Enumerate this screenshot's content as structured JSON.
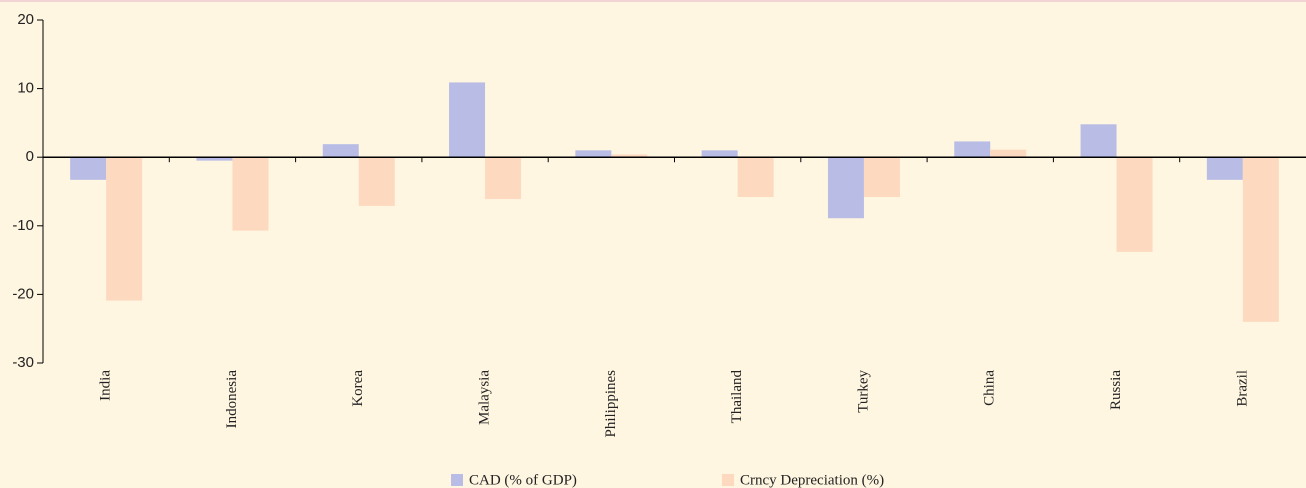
{
  "chart_data": {
    "type": "bar",
    "categories": [
      "India",
      "Indonesia",
      "Korea",
      "Malaysia",
      "Philippines",
      "Thailand",
      "Turkey",
      "China",
      "Russia",
      "Brazil"
    ],
    "series": [
      {
        "name": "CAD (% of GDP)",
        "color": "#b9bde6",
        "values": [
          -3.3,
          -0.5,
          1.9,
          10.9,
          1.0,
          1.0,
          -8.9,
          2.3,
          4.8,
          -3.3
        ]
      },
      {
        "name": "Crncy Depreciation (%)",
        "color": "#fdd9bf",
        "values": [
          -20.9,
          -10.7,
          -7.1,
          -6.1,
          0.4,
          -5.8,
          -5.8,
          1.1,
          -13.8,
          -24.0
        ]
      }
    ],
    "ylim": [
      -30,
      20
    ],
    "yticks": [
      -30,
      -20,
      -10,
      0,
      10,
      20
    ],
    "legend": "bottom"
  }
}
